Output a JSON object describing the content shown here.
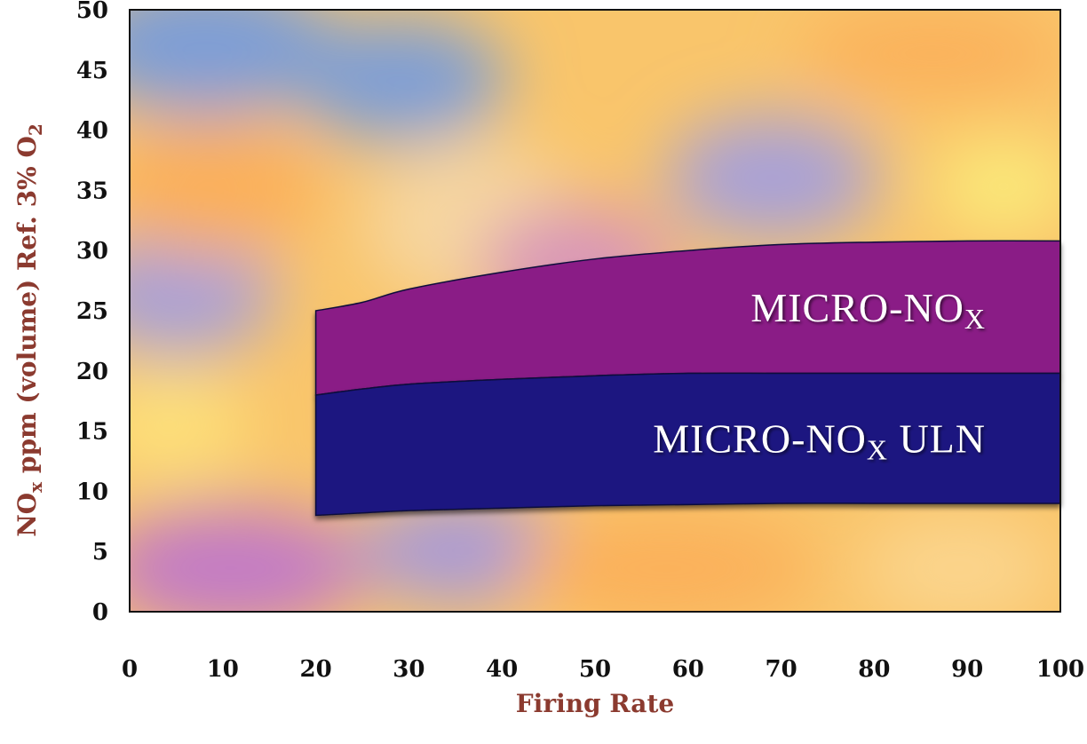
{
  "chart_data": {
    "type": "area",
    "title": "",
    "xlabel": "Firing Rate",
    "ylabel": {
      "p1": "NO",
      "p1_sub": "x",
      "p2": " ppm (volume) Ref. 3% O",
      "p2_sub": "2"
    },
    "xlim": [
      0,
      100
    ],
    "ylim": [
      0,
      50
    ],
    "x_ticks": [
      "0",
      "10",
      "20",
      "30",
      "40",
      "50",
      "60",
      "70",
      "80",
      "90",
      "100"
    ],
    "y_ticks": [
      "0",
      "5",
      "10",
      "15",
      "20",
      "25",
      "30",
      "35",
      "40",
      "45",
      "50"
    ],
    "grid": false,
    "series": [
      {
        "name": {
          "main": "MICRO-NO",
          "sub": "X"
        },
        "color": "#8a1a86",
        "x": [
          20,
          25,
          30,
          40,
          50,
          60,
          70,
          80,
          90,
          100
        ],
        "upper": [
          25,
          25.7,
          26.8,
          28.2,
          29.3,
          30.0,
          30.5,
          30.7,
          30.8,
          30.8
        ],
        "lower": [
          18,
          18.5,
          18.9,
          19.3,
          19.6,
          19.8,
          19.8,
          19.8,
          19.8,
          19.8
        ]
      },
      {
        "name": {
          "main": "MICRO-NO",
          "sub": "X",
          "suffix": " ULN"
        },
        "color": "#1a1480",
        "x": [
          20,
          25,
          30,
          40,
          50,
          60,
          70,
          80,
          90,
          100
        ],
        "upper": [
          18,
          18.5,
          18.9,
          19.3,
          19.6,
          19.8,
          19.8,
          19.8,
          19.8,
          19.8
        ],
        "lower": [
          8,
          8.2,
          8.4,
          8.6,
          8.8,
          8.9,
          9.0,
          9.0,
          9.0,
          9.0
        ]
      }
    ]
  }
}
